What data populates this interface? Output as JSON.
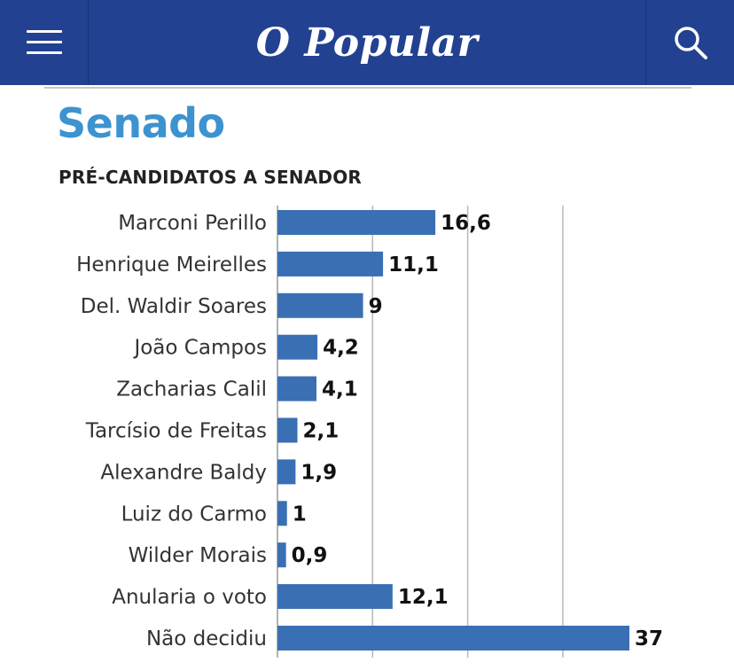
{
  "header": {
    "logo_text": "O Popular",
    "menu_icon": "hamburger-menu-icon",
    "search_icon": "search-icon",
    "background_color": "#234191"
  },
  "chart_data": {
    "type": "bar",
    "orientation": "horizontal",
    "title": "Senado",
    "subtitle": "PRÉ-CANDIDATOS A SENADOR",
    "categories": [
      "Marconi Perillo",
      "Henrique Meirelles",
      "Del. Waldir Soares",
      "João Campos",
      "Zacharias Calil",
      "Tarcísio de Freitas",
      "Alexandre Baldy",
      "Luiz do Carmo",
      "Wilder Morais",
      "Anularia o voto",
      "Não decidiu"
    ],
    "values": [
      16.6,
      11.1,
      9,
      4.2,
      4.1,
      2.1,
      1.9,
      1,
      0.9,
      12.1,
      37
    ],
    "value_labels": [
      "16,6",
      "11,1",
      "9",
      "4,2",
      "4,1",
      "2,1",
      "1,9",
      "1",
      "0,9",
      "12,1",
      "37"
    ],
    "xlim": [
      0,
      37
    ],
    "gridlines_at": [
      10,
      20,
      30
    ],
    "grid": true,
    "bar_color": "#3a6fb4",
    "title_color": "#3c93cf"
  }
}
